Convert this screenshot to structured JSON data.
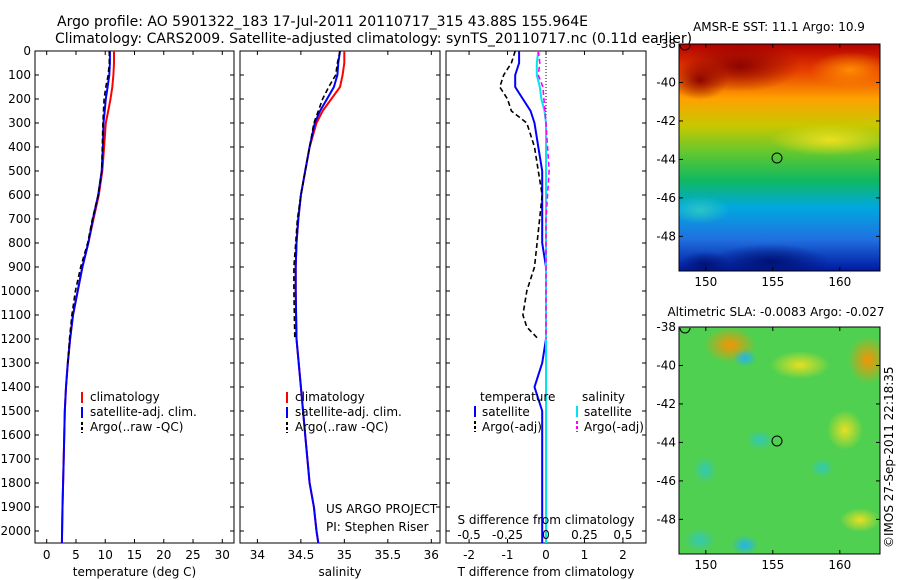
{
  "title_line1": "Argo profile: AO 5901322_183 17-Jul-2011 20110717_315 43.88S 155.964E",
  "title_line2": "Climatology: CARS2009. Satellite-adjusted climatology: synTS_20110717.nc (0.11d earlier)",
  "project_text": "US ARGO PROJECT",
  "pi_text": "PI: Stephen Riser",
  "credit_text": "©IMOS 27-Sep-2011 22:18:35",
  "colors": {
    "climatology": "#ff0000",
    "satellite": "#0000ff",
    "argo": "#000000",
    "sal_satellite": "#00e5ee",
    "sal_argo": "#ff00ff"
  },
  "chart_data": [
    {
      "type": "line",
      "xlabel": "temperature (deg C)",
      "xlim": [
        -2,
        32
      ],
      "xticks": [
        0,
        5,
        10,
        15,
        20,
        25,
        30
      ],
      "ylim": [
        0,
        2050
      ],
      "yticks": [
        0,
        100,
        200,
        300,
        400,
        500,
        600,
        700,
        800,
        900,
        1000,
        1100,
        1200,
        1300,
        1400,
        1500,
        1600,
        1700,
        1800,
        1900,
        2000
      ],
      "y_reversed": true,
      "legend": [
        "climatology",
        "satellite-adj. clim.",
        "Argo(..raw -QC)"
      ],
      "series": [
        {
          "name": "climatology",
          "x": [
            11.5,
            11.5,
            11.4,
            11.2,
            10.9,
            10.5,
            10.1,
            9.8,
            9.5,
            8.9,
            8.0,
            7.1,
            6.1,
            5.3,
            4.5,
            4.0,
            3.6,
            3.3,
            3.1,
            2.9,
            2.7,
            2.6
          ],
          "y": [
            0,
            50,
            100,
            150,
            200,
            250,
            300,
            400,
            500,
            600,
            700,
            800,
            900,
            1000,
            1100,
            1200,
            1300,
            1400,
            1500,
            1700,
            1900,
            2050
          ]
        },
        {
          "name": "satellite-adj. clim.",
          "x": [
            10.8,
            10.8,
            10.7,
            10.4,
            10.1,
            9.9,
            9.7,
            9.6,
            9.4,
            8.8,
            7.9,
            7.1,
            6.1,
            5.3,
            4.5,
            4.0,
            3.6,
            3.3,
            3.1,
            2.9,
            2.7,
            2.6
          ],
          "y": [
            0,
            50,
            100,
            150,
            200,
            250,
            300,
            400,
            500,
            600,
            700,
            800,
            900,
            1000,
            1100,
            1200,
            1300,
            1400,
            1500,
            1700,
            1900,
            2050
          ]
        },
        {
          "name": "Argo(..raw -QC)",
          "x": [
            10.7,
            10.7,
            10.5,
            10.1,
            9.8,
            9.7,
            9.6,
            9.5,
            9.4,
            8.8,
            7.8,
            7.0,
            5.8,
            4.9,
            4.3,
            3.9,
            3.6
          ],
          "y": [
            0,
            50,
            100,
            150,
            200,
            250,
            300,
            400,
            500,
            600,
            700,
            800,
            900,
            1000,
            1100,
            1200,
            1300
          ]
        }
      ]
    },
    {
      "type": "line",
      "xlabel": "salinity",
      "xlim": [
        33.8,
        36.1
      ],
      "xticks": [
        34,
        34.5,
        35,
        35.5,
        36
      ],
      "ylim": [
        0,
        2050
      ],
      "y_reversed": true,
      "legend": [
        "climatology",
        "satellite-adj. clim.",
        "Argo(..raw -QC)"
      ],
      "series": [
        {
          "name": "climatology",
          "x": [
            35.0,
            35.0,
            34.98,
            34.95,
            34.85,
            34.75,
            34.68,
            34.6,
            34.55,
            34.5,
            34.47,
            34.45,
            34.44,
            34.44,
            34.45,
            34.5,
            34.55,
            34.6,
            34.65,
            34.68,
            34.7
          ],
          "y": [
            0,
            50,
            100,
            150,
            200,
            250,
            300,
            400,
            500,
            600,
            700,
            800,
            900,
            1000,
            1200,
            1400,
            1600,
            1800,
            1900,
            2000,
            2050
          ]
        },
        {
          "name": "satellite-adj. clim.",
          "x": [
            34.95,
            34.93,
            34.92,
            34.88,
            34.8,
            34.72,
            34.66,
            34.6,
            34.55,
            34.5,
            34.47,
            34.45,
            34.44,
            34.44,
            34.45,
            34.5,
            34.55,
            34.6,
            34.65,
            34.68,
            34.7
          ],
          "y": [
            0,
            50,
            100,
            150,
            200,
            250,
            300,
            400,
            500,
            600,
            700,
            800,
            900,
            1000,
            1200,
            1400,
            1600,
            1800,
            1900,
            2000,
            2050
          ]
        },
        {
          "name": "Argo(..raw -QC)",
          "x": [
            34.95,
            34.92,
            34.9,
            34.82,
            34.75,
            34.7,
            34.65,
            34.6,
            34.55,
            34.5,
            34.46,
            34.44,
            34.42,
            34.42,
            34.43
          ],
          "y": [
            0,
            50,
            100,
            150,
            200,
            250,
            300,
            400,
            500,
            600,
            700,
            800,
            900,
            1000,
            1200
          ]
        }
      ]
    },
    {
      "type": "line",
      "xlabel": "T difference from climatology",
      "xlabel_top": "S difference from climatology",
      "xlim": [
        -2.6,
        2.6
      ],
      "xticks": [
        -2,
        -1,
        0,
        1,
        2
      ],
      "xticks_top_values": [
        -0.5,
        -0.25,
        0,
        0.25,
        0.5
      ],
      "xticks_top_labels": [
        "-0.5",
        "-0.25",
        "0",
        "0.25",
        "0.5"
      ],
      "ylim": [
        0,
        2050
      ],
      "y_reversed": true,
      "legend_headers": [
        "temperature",
        "salinity"
      ],
      "legend": [
        "satellite",
        "Argo(-adj)",
        "satellite",
        "Argo(-adj)"
      ],
      "series": [
        {
          "name": "temperature satellite",
          "x": [
            -0.7,
            -0.7,
            -0.8,
            -0.8,
            -0.6,
            -0.4,
            -0.3,
            -0.2,
            -0.1,
            -0.1,
            -0.1,
            0.0,
            0.0,
            0.0,
            -0.1,
            -0.3,
            -0.1,
            -0.1,
            -0.1,
            -0.1
          ],
          "y": [
            0,
            50,
            100,
            150,
            200,
            250,
            300,
            400,
            500,
            600,
            800,
            900,
            1000,
            1200,
            1300,
            1400,
            1500,
            1700,
            1900,
            2050
          ]
        },
        {
          "name": "temperature Argo(-adj)",
          "x": [
            -0.8,
            -0.9,
            -1.1,
            -1.2,
            -1.0,
            -0.9,
            -0.5,
            -0.3,
            -0.2,
            -0.1,
            -0.3,
            -0.5,
            -0.6,
            -0.5,
            -0.2
          ],
          "y": [
            0,
            50,
            100,
            150,
            200,
            250,
            300,
            400,
            500,
            600,
            900,
            1000,
            1100,
            1150,
            1200
          ]
        },
        {
          "name": "salinity satellite",
          "x": [
            -0.05,
            -0.06,
            -0.06,
            -0.04,
            -0.03,
            -0.01,
            0.0,
            0.0,
            0.0,
            0.0,
            0.0,
            0.0,
            0.0
          ],
          "y": [
            0,
            50,
            100,
            150,
            200,
            250,
            300,
            400,
            600,
            800,
            1200,
            1600,
            2050
          ]
        },
        {
          "name": "salinity Argo(-adj)",
          "x": [
            -0.05,
            -0.04,
            -0.05,
            -0.02,
            0.0,
            0.02,
            0.0,
            0.0,
            0.0,
            0.0
          ],
          "y": [
            0,
            50,
            100,
            150,
            300,
            500,
            700,
            900,
            1100,
            1200
          ]
        }
      ]
    },
    {
      "type": "heatmap",
      "title": "AMSR-E SST: 11.1  Argo: 10.9",
      "xlim": [
        148,
        163
      ],
      "ylim": [
        -49.8,
        -38
      ],
      "xticks": [
        150,
        155,
        160
      ],
      "yticks": [
        -38,
        -40,
        -42,
        -44,
        -46,
        -48
      ],
      "argo_position": [
        155.964,
        -43.88
      ]
    },
    {
      "type": "heatmap",
      "title": "Altimetric SLA: -0.0083  Argo: -0.027",
      "xlim": [
        148,
        163
      ],
      "ylim": [
        -49.8,
        -38
      ],
      "xticks": [
        150,
        155,
        160
      ],
      "yticks": [
        -38,
        -40,
        -42,
        -44,
        -46,
        -48
      ],
      "argo_position": [
        155.964,
        -43.88
      ]
    }
  ]
}
